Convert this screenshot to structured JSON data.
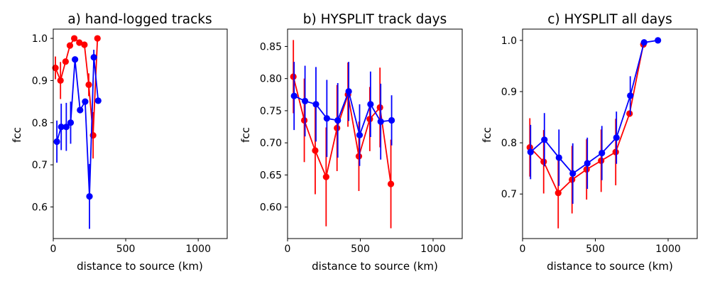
{
  "colors": {
    "series_a": "#ff0000",
    "series_b": "#0000ff",
    "axes": "#000000",
    "background": "#ffffff"
  },
  "chart_data": [
    {
      "type": "scatter",
      "title": "a) hand-logged tracks",
      "xlabel": "distance to source (km)",
      "ylabel": "fcc",
      "xlim": [
        0,
        1200
      ],
      "ylim": [
        0.525,
        1.022
      ],
      "xticks": [
        0,
        500,
        1000
      ],
      "yticks": [
        0.6,
        0.7,
        0.8,
        0.9,
        1.0
      ],
      "ytick_labels": [
        "0.6",
        "0.7",
        "0.8",
        "0.9",
        "1.0"
      ],
      "series": [
        {
          "name": "red",
          "color": "#ff0000",
          "x": [
            15,
            50,
            85,
            115,
            145,
            180,
            215,
            245,
            275,
            305
          ],
          "y": [
            0.93,
            0.9,
            0.945,
            0.983,
            1.0,
            0.99,
            0.985,
            0.89,
            0.77,
            1.0
          ],
          "err": [
            0.027,
            0.044,
            0.0,
            0.0,
            0.0,
            0.0,
            0.0,
            0.027,
            0.055,
            0.0
          ]
        },
        {
          "name": "blue",
          "color": "#0000ff",
          "x": [
            25,
            55,
            90,
            120,
            150,
            185,
            220,
            250,
            280,
            310
          ],
          "y": [
            0.755,
            0.79,
            0.79,
            0.8,
            0.95,
            0.83,
            0.85,
            0.625,
            0.955,
            0.852
          ],
          "err": [
            0.05,
            0.055,
            0.057,
            0.05,
            0.0,
            0.0,
            0.0,
            0.077,
            0.018,
            0.0
          ]
        }
      ]
    },
    {
      "type": "scatter",
      "title": "b) HYSPLIT track days",
      "xlabel": "distance to source (km)",
      "ylabel": "fcc",
      "xlim": [
        0,
        1200
      ],
      "ylim": [
        0.551,
        0.877
      ],
      "xticks": [
        0,
        500,
        1000
      ],
      "yticks": [
        0.6,
        0.65,
        0.7,
        0.75,
        0.8,
        0.85
      ],
      "ytick_labels": [
        "0.60",
        "0.65",
        "0.70",
        "0.75",
        "0.80",
        "0.85"
      ],
      "series": [
        {
          "name": "red",
          "color": "#ff0000",
          "x": [
            40,
            115,
            190,
            265,
            340,
            415,
            490,
            565,
            635,
            710
          ],
          "y": [
            0.803,
            0.735,
            0.688,
            0.647,
            0.723,
            0.775,
            0.679,
            0.737,
            0.755,
            0.636
          ],
          "err": [
            0.057,
            0.065,
            0.068,
            0.077,
            0.067,
            0.05,
            0.054,
            0.05,
            0.062,
            0.069
          ]
        },
        {
          "name": "blue",
          "color": "#0000ff",
          "x": [
            45,
            120,
            195,
            270,
            345,
            420,
            495,
            570,
            640,
            715
          ],
          "y": [
            0.773,
            0.765,
            0.76,
            0.738,
            0.735,
            0.78,
            0.712,
            0.76,
            0.733,
            0.735
          ],
          "err": [
            0.053,
            0.055,
            0.058,
            0.06,
            0.058,
            0.046,
            0.048,
            0.051,
            0.059,
            0.039
          ]
        }
      ]
    },
    {
      "type": "scatter",
      "title": "c) HYSPLIT all days",
      "xlabel": "distance to source (km)",
      "ylabel": "fcc",
      "xlim": [
        0,
        1200
      ],
      "ylim": [
        0.613,
        1.022
      ],
      "xticks": [
        0,
        500,
        1000
      ],
      "yticks": [
        0.7,
        0.8,
        0.9,
        1.0
      ],
      "ytick_labels": [
        "0.7",
        "0.8",
        "0.9",
        "1.0"
      ],
      "series": [
        {
          "name": "red",
          "color": "#ff0000",
          "x": [
            50,
            145,
            245,
            340,
            440,
            540,
            640,
            735,
            830
          ],
          "y": [
            0.791,
            0.763,
            0.702,
            0.728,
            0.748,
            0.765,
            0.782,
            0.857,
            0.992
          ],
          "err": [
            0.057,
            0.062,
            0.069,
            0.066,
            0.059,
            0.061,
            0.065,
            0.0,
            0.0
          ]
        },
        {
          "name": "blue",
          "color": "#0000ff",
          "x": [
            55,
            150,
            250,
            345,
            445,
            545,
            645,
            740,
            835,
            930
          ],
          "y": [
            0.782,
            0.806,
            0.771,
            0.74,
            0.76,
            0.78,
            0.81,
            0.892,
            0.996,
            1.0
          ],
          "err": [
            0.053,
            0.052,
            0.055,
            0.059,
            0.05,
            0.053,
            0.051,
            0.038,
            0.0,
            0.0
          ]
        }
      ]
    }
  ]
}
